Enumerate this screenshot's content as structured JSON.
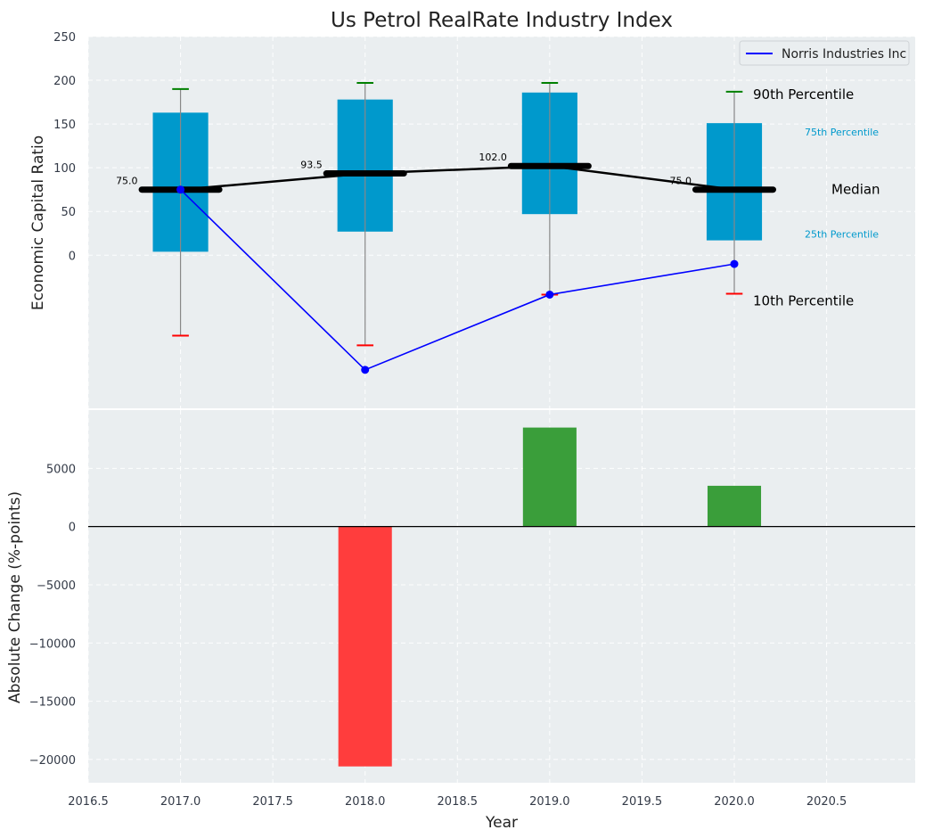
{
  "chart_data": [
    {
      "type": "box",
      "title": "Us Petrol RealRate Industry Index",
      "ylabel": "Economic Capital Ratio",
      "ylim": [
        -175,
        250
      ],
      "yticks": [
        0,
        50,
        100,
        150,
        200,
        250
      ],
      "xlim": [
        2016.5,
        2020.98
      ],
      "x": [
        2017,
        2018,
        2019,
        2020
      ],
      "series": [
        {
          "name": "10th Percentile",
          "values": [
            -92,
            -103,
            -45,
            -44
          ]
        },
        {
          "name": "25th Percentile",
          "values": [
            4,
            27,
            47,
            17
          ]
        },
        {
          "name": "Median",
          "values": [
            75,
            93.5,
            102,
            75
          ]
        },
        {
          "name": "75th Percentile",
          "values": [
            163,
            178,
            186,
            151
          ]
        },
        {
          "name": "90th Percentile",
          "values": [
            190,
            197,
            197,
            187
          ]
        },
        {
          "name": "Norris Industries Inc",
          "values": [
            75,
            -131,
            -45,
            -10
          ]
        }
      ],
      "median_labels": [
        "75.0",
        "93.5",
        "102.0",
        "75.0"
      ],
      "annotations": {
        "p90": "90th Percentile",
        "p75": "75th Percentile",
        "median": "Median",
        "p25": "25th Percentile",
        "p10": "10th Percentile"
      },
      "legend": {
        "entries": [
          "Norris Industries Inc"
        ],
        "position": "top-right"
      },
      "colors": {
        "box": "#0099cc",
        "median": "#000000",
        "company": "#0000ff",
        "p90": "#008000",
        "p10": "#ff0000",
        "annotation_blue": "#0099cc"
      }
    },
    {
      "type": "bar",
      "xlabel": "Year",
      "ylabel": "Absolute Change (%-points)",
      "x": [
        2017,
        2018,
        2019,
        2020
      ],
      "values": [
        0,
        -20600,
        8500,
        3500
      ],
      "ylim": [
        -22000,
        10000
      ],
      "yticks": [
        -20000,
        -15000,
        -10000,
        -5000,
        0,
        5000
      ],
      "xticks": [
        2016.5,
        2017.0,
        2017.5,
        2018.0,
        2018.5,
        2019.0,
        2019.5,
        2020.0,
        2020.5
      ],
      "colors": {
        "positive": "#3a9e3a",
        "negative": "#ff3d3d"
      }
    }
  ]
}
